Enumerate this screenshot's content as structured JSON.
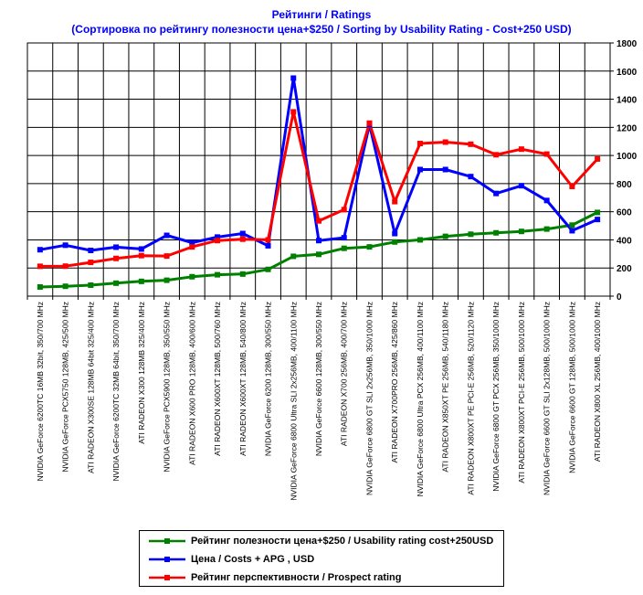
{
  "chart_data": {
    "type": "line",
    "title": "Рейтинги / Ratings",
    "subtitle": "(Сортировка по рейтингу полезности цена+$250 / Sorting by Usability Rating - Cost+250 USD)",
    "ylim": [
      0,
      1800
    ],
    "yticks": [
      0,
      200,
      400,
      600,
      800,
      1000,
      1200,
      1400,
      1600,
      1800
    ],
    "grid": true,
    "legend_position": "bottom",
    "categories": [
      "NVIDIA GeForce 6200TC 16MB 32bit, 350/700 MHz",
      "NVIDIA GeForce PCX5750 128MB, 425/500 MHz",
      "ATI RADEON X300SE 128MB 64bit 325/400 MHz",
      "NVIDIA GeForce 6200TC 32MB 64bit, 350/700 MHz",
      "ATI RADEON X300 128MB 325/400 MHz",
      "NVIDIA GeForce PCX5900 128MB, 350/550 MHz",
      "ATI RADEON X600 PRO 128MB, 400/600 MHz",
      "ATI RADEON X600XT 128MB, 500/760 MHz",
      "ATI RADEON X600XT 128MB, 540/800 MHz",
      "NVIDIA GeForce 6200 128MB, 300/550 MHz",
      "NVIDIA GeForce 6800 Ultra SLI 2x256MB, 400/1100 MHz",
      "NVIDIA GeForce 6600 128MB, 300/550 MHz",
      "ATI RADEON X700 256MB, 400/700 MHz",
      "NVIDIA GeForce 6800 GT SLI 2x256MB, 350/1000 MHz",
      "ATI RADEON X700PRO 256MB, 425/860 MHz",
      "NVIDIA GeForce 6800 Ultra PCX 256MB, 400/1100 MHz",
      "ATI RADEON X850XT PE 256MB, 540/1180 MHz",
      "ATI RADEON X800XT PE PCI-E 256MB, 520/1120 MHz",
      "NVIDIA GeForce 6800 GT PCX 256MB, 350/1000 MHz",
      "ATI RADEON X800XT PCI-E 256MB, 500/1000 MHz",
      "NVIDIA GeForce 6600 GT SLI 2x128MB, 500/1000 MHz",
      "NVIDIA GeForce 6600 GT 128MB, 500/1000 MHz",
      "ATI RADEON X800 XL 256MB, 400/1000 MHz"
    ],
    "series": [
      {
        "name": "Рейтинг полезности цена+$250 / Usability rating cost+250USD",
        "color": "#008000",
        "values": [
          65,
          70,
          78,
          92,
          105,
          113,
          138,
          152,
          157,
          190,
          283,
          297,
          340,
          350,
          385,
          400,
          425,
          440,
          450,
          460,
          477,
          505,
          595
        ]
      },
      {
        "name": "Цена / Costs + APG , USD",
        "color": "#0000ff",
        "values": [
          330,
          362,
          325,
          348,
          335,
          432,
          380,
          420,
          445,
          358,
          1550,
          395,
          415,
          1220,
          445,
          900,
          900,
          850,
          730,
          785,
          680,
          465,
          545
        ]
      },
      {
        "name": "Рейтинг перспективности / Prospect rating",
        "color": "#ff0000",
        "values": [
          212,
          213,
          240,
          268,
          288,
          285,
          350,
          395,
          405,
          400,
          1310,
          535,
          615,
          1230,
          672,
          1085,
          1095,
          1080,
          1005,
          1045,
          1010,
          780,
          975
        ]
      }
    ]
  }
}
